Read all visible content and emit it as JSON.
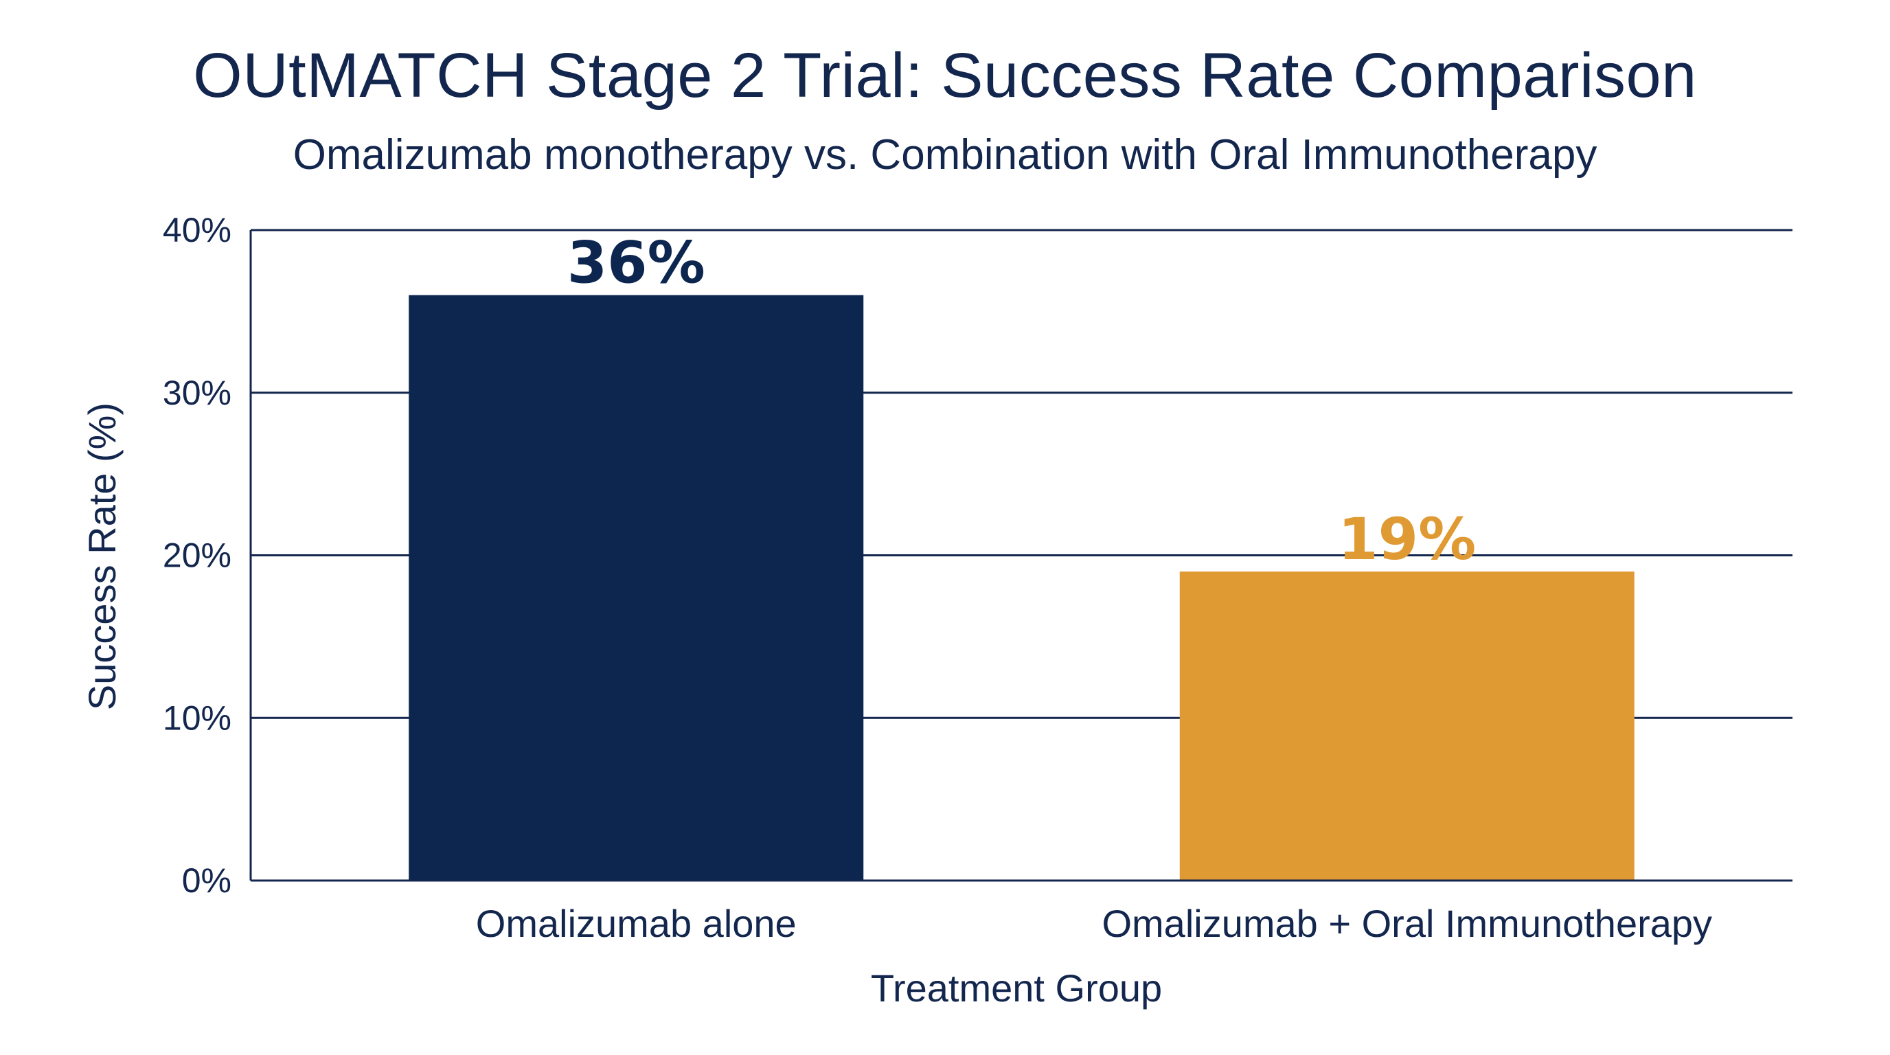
{
  "chart_data": {
    "type": "bar",
    "title": "OUtMATCH Stage 2 Trial: Success Rate Comparison",
    "subtitle": "Omalizumab monotherapy vs. Combination with Oral Immunotherapy",
    "xlabel": "Treatment Group",
    "ylabel": "Success Rate (%)",
    "categories": [
      "Omalizumab alone",
      "Omalizumab + Oral Immunotherapy"
    ],
    "values": [
      36,
      19
    ],
    "data_labels": [
      "36%",
      "19%"
    ],
    "colors": [
      "#0d264f",
      "#e09a33"
    ],
    "ylim": [
      0,
      40
    ],
    "yticks": [
      0,
      10,
      20,
      30,
      40
    ],
    "ytick_labels": [
      "0%",
      "10%",
      "20%",
      "30%",
      "40%"
    ],
    "grid": true,
    "legend": "none"
  }
}
